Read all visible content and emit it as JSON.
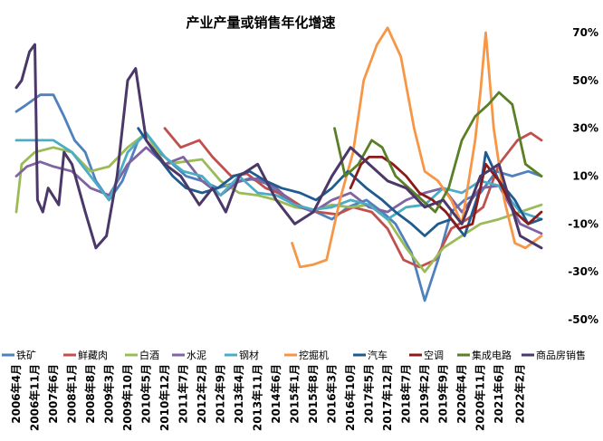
{
  "chart_data": {
    "type": "line",
    "title": "产业产量或销售年化增速",
    "ylim": [
      -50,
      70
    ],
    "y_ticks": [
      "70%",
      "50%",
      "30%",
      "10%",
      "-10%",
      "-30%",
      "-50%"
    ],
    "y_tick_values": [
      70,
      50,
      30,
      10,
      -10,
      -30,
      -50
    ],
    "x_start": "2006-04",
    "x_end": "2022-10",
    "x_ticks": [
      "2006年4月",
      "2006年11月",
      "2007年6月",
      "2008年1月",
      "2008年8月",
      "2009年3月",
      "2009年10月",
      "2010年5月",
      "2010年12月",
      "2011年7月",
      "2012年2月",
      "2012年9月",
      "2013年4月",
      "2013年11月",
      "2014年6月",
      "2015年1月",
      "2015年8月",
      "2016年3月",
      "2016年10月",
      "2017年5月",
      "2017年12月",
      "2018年7月",
      "2019年2月",
      "2019年9月",
      "2020年4月",
      "2020年11月",
      "2021年6月",
      "2022年2月"
    ],
    "legend_position": "bottom",
    "grid": false,
    "series": [
      {
        "name": "铁矿",
        "color": "#4f81bd",
        "width": 2.8,
        "points": [
          [
            "2006-04",
            37
          ],
          [
            "2006-08",
            40
          ],
          [
            "2007-01",
            44
          ],
          [
            "2007-06",
            44
          ],
          [
            "2007-10",
            35
          ],
          [
            "2008-02",
            25
          ],
          [
            "2008-06",
            20
          ],
          [
            "2008-10",
            8
          ],
          [
            "2009-03",
            0
          ],
          [
            "2009-08",
            8
          ],
          [
            "2010-02",
            25
          ],
          [
            "2010-05",
            28
          ],
          [
            "2010-10",
            20
          ],
          [
            "2011-03",
            15
          ],
          [
            "2011-08",
            10
          ],
          [
            "2012-02",
            8
          ],
          [
            "2012-08",
            5
          ],
          [
            "2013-02",
            7
          ],
          [
            "2013-08",
            9
          ],
          [
            "2014-02",
            7
          ],
          [
            "2014-08",
            2
          ],
          [
            "2015-03",
            -3
          ],
          [
            "2015-09",
            -5
          ],
          [
            "2016-03",
            -8
          ],
          [
            "2016-09",
            -3
          ],
          [
            "2017-04",
            0
          ],
          [
            "2017-10",
            -5
          ],
          [
            "2018-03",
            -10
          ],
          [
            "2018-09",
            -22
          ],
          [
            "2019-02",
            -42
          ],
          [
            "2019-07",
            -25
          ],
          [
            "2019-12",
            -5
          ],
          [
            "2020-05",
            0
          ],
          [
            "2020-11",
            3
          ],
          [
            "2021-05",
            12
          ],
          [
            "2021-11",
            10
          ],
          [
            "2022-05",
            12
          ],
          [
            "2022-10",
            10
          ]
        ]
      },
      {
        "name": "鲜藏肉",
        "color": "#c0504d",
        "width": 2.8,
        "points": [
          [
            "2010-12",
            30
          ],
          [
            "2011-06",
            22
          ],
          [
            "2012-01",
            25
          ],
          [
            "2012-06",
            18
          ],
          [
            "2013-01",
            10
          ],
          [
            "2013-07",
            11
          ],
          [
            "2014-02",
            5
          ],
          [
            "2014-09",
            2
          ],
          [
            "2015-04",
            -3
          ],
          [
            "2015-10",
            -5
          ],
          [
            "2016-05",
            -6
          ],
          [
            "2016-11",
            -3
          ],
          [
            "2017-06",
            -5
          ],
          [
            "2017-12",
            -12
          ],
          [
            "2018-06",
            -25
          ],
          [
            "2018-12",
            -28
          ],
          [
            "2019-06",
            -25
          ],
          [
            "2019-12",
            -12
          ],
          [
            "2020-06",
            -8
          ],
          [
            "2020-12",
            -3
          ],
          [
            "2021-06",
            15
          ],
          [
            "2022-01",
            25
          ],
          [
            "2022-06",
            28
          ],
          [
            "2022-10",
            25
          ]
        ]
      },
      {
        "name": "白酒",
        "color": "#9bbb59",
        "width": 2.8,
        "points": [
          [
            "2006-04",
            -5
          ],
          [
            "2006-06",
            15
          ],
          [
            "2006-11",
            20
          ],
          [
            "2007-06",
            22
          ],
          [
            "2008-01",
            20
          ],
          [
            "2008-08",
            12
          ],
          [
            "2009-03",
            14
          ],
          [
            "2009-10",
            22
          ],
          [
            "2010-05",
            28
          ],
          [
            "2010-12",
            15
          ],
          [
            "2011-07",
            16
          ],
          [
            "2012-02",
            17
          ],
          [
            "2012-09",
            8
          ],
          [
            "2013-04",
            3
          ],
          [
            "2013-11",
            2
          ],
          [
            "2014-06",
            0
          ],
          [
            "2015-01",
            -3
          ],
          [
            "2015-08",
            -4
          ],
          [
            "2016-03",
            -2
          ],
          [
            "2016-10",
            -3
          ],
          [
            "2017-05",
            -2
          ],
          [
            "2017-12",
            -8
          ],
          [
            "2018-07",
            -20
          ],
          [
            "2019-02",
            -30
          ],
          [
            "2019-09",
            -20
          ],
          [
            "2020-04",
            -15
          ],
          [
            "2020-11",
            -10
          ],
          [
            "2021-06",
            -8
          ],
          [
            "2022-02",
            -5
          ],
          [
            "2022-10",
            -2
          ]
        ]
      },
      {
        "name": "水泥",
        "color": "#8064a2",
        "width": 2.8,
        "points": [
          [
            "2006-04",
            10
          ],
          [
            "2006-08",
            14
          ],
          [
            "2007-01",
            16
          ],
          [
            "2007-06",
            14
          ],
          [
            "2008-01",
            12
          ],
          [
            "2008-08",
            5
          ],
          [
            "2009-03",
            2
          ],
          [
            "2009-10",
            15
          ],
          [
            "2010-05",
            22
          ],
          [
            "2010-12",
            15
          ],
          [
            "2011-07",
            18
          ],
          [
            "2012-02",
            8
          ],
          [
            "2012-09",
            2
          ],
          [
            "2013-04",
            8
          ],
          [
            "2013-11",
            9
          ],
          [
            "2014-06",
            5
          ],
          [
            "2015-01",
            -2
          ],
          [
            "2015-08",
            -5
          ],
          [
            "2016-03",
            0
          ],
          [
            "2016-10",
            3
          ],
          [
            "2017-05",
            -3
          ],
          [
            "2017-12",
            -5
          ],
          [
            "2018-07",
            0
          ],
          [
            "2019-02",
            3
          ],
          [
            "2019-09",
            5
          ],
          [
            "2020-04",
            -5
          ],
          [
            "2020-11",
            5
          ],
          [
            "2021-06",
            6
          ],
          [
            "2022-02",
            -10
          ],
          [
            "2022-10",
            -14
          ]
        ]
      },
      {
        "name": "钢材",
        "color": "#4bacc6",
        "width": 2.8,
        "points": [
          [
            "2006-04",
            25
          ],
          [
            "2007-01",
            25
          ],
          [
            "2007-06",
            25
          ],
          [
            "2008-01",
            20
          ],
          [
            "2008-08",
            10
          ],
          [
            "2009-03",
            0
          ],
          [
            "2009-10",
            20
          ],
          [
            "2010-05",
            28
          ],
          [
            "2010-12",
            18
          ],
          [
            "2011-07",
            12
          ],
          [
            "2012-02",
            10
          ],
          [
            "2012-09",
            2
          ],
          [
            "2013-04",
            10
          ],
          [
            "2013-11",
            3
          ],
          [
            "2014-06",
            2
          ],
          [
            "2015-01",
            -2
          ],
          [
            "2015-08",
            -4
          ],
          [
            "2016-03",
            -3
          ],
          [
            "2016-10",
            0
          ],
          [
            "2017-05",
            -2
          ],
          [
            "2017-12",
            -8
          ],
          [
            "2018-07",
            -3
          ],
          [
            "2019-02",
            -2
          ],
          [
            "2019-09",
            5
          ],
          [
            "2020-04",
            3
          ],
          [
            "2020-11",
            8
          ],
          [
            "2021-06",
            6
          ],
          [
            "2022-02",
            -5
          ],
          [
            "2022-10",
            -8
          ]
        ]
      },
      {
        "name": "挖掘机",
        "color": "#f79646",
        "width": 2.8,
        "points": [
          [
            "2014-12",
            -18
          ],
          [
            "2015-03",
            -28
          ],
          [
            "2015-08",
            -27
          ],
          [
            "2016-01",
            -25
          ],
          [
            "2016-06",
            0
          ],
          [
            "2016-11",
            20
          ],
          [
            "2017-03",
            50
          ],
          [
            "2017-08",
            65
          ],
          [
            "2017-12",
            72
          ],
          [
            "2018-05",
            60
          ],
          [
            "2018-10",
            30
          ],
          [
            "2019-02",
            12
          ],
          [
            "2019-07",
            8
          ],
          [
            "2019-12",
            0
          ],
          [
            "2020-04",
            -10
          ],
          [
            "2020-09",
            25
          ],
          [
            "2020-11",
            45
          ],
          [
            "2021-01",
            70
          ],
          [
            "2021-04",
            30
          ],
          [
            "2021-08",
            0
          ],
          [
            "2021-12",
            -18
          ],
          [
            "2022-04",
            -20
          ],
          [
            "2022-10",
            -15
          ]
        ]
      },
      {
        "name": "汽车",
        "color": "#1f5b8f",
        "width": 2.8,
        "points": [
          [
            "2010-02",
            30
          ],
          [
            "2010-08",
            20
          ],
          [
            "2011-03",
            10
          ],
          [
            "2011-08",
            5
          ],
          [
            "2012-02",
            3
          ],
          [
            "2012-08",
            5
          ],
          [
            "2013-02",
            10
          ],
          [
            "2013-08",
            12
          ],
          [
            "2014-02",
            8
          ],
          [
            "2014-08",
            5
          ],
          [
            "2015-03",
            3
          ],
          [
            "2015-09",
            0
          ],
          [
            "2016-03",
            5
          ],
          [
            "2016-09",
            12
          ],
          [
            "2017-04",
            5
          ],
          [
            "2017-10",
            0
          ],
          [
            "2018-03",
            -5
          ],
          [
            "2018-09",
            -10
          ],
          [
            "2019-02",
            -15
          ],
          [
            "2019-07",
            -10
          ],
          [
            "2019-12",
            -8
          ],
          [
            "2020-05",
            -15
          ],
          [
            "2020-11",
            5
          ],
          [
            "2021-01",
            20
          ],
          [
            "2021-06",
            8
          ],
          [
            "2021-12",
            0
          ],
          [
            "2022-05",
            -10
          ],
          [
            "2022-10",
            -8
          ]
        ]
      },
      {
        "name": "空调",
        "color": "#8b1a1a",
        "width": 2.8,
        "points": [
          [
            "2016-10",
            5
          ],
          [
            "2017-02",
            15
          ],
          [
            "2017-05",
            18
          ],
          [
            "2017-10",
            18
          ],
          [
            "2018-02",
            15
          ],
          [
            "2018-07",
            10
          ],
          [
            "2018-12",
            3
          ],
          [
            "2019-05",
            0
          ],
          [
            "2019-10",
            -5
          ],
          [
            "2020-03",
            -12
          ],
          [
            "2020-08",
            -10
          ],
          [
            "2021-01",
            15
          ],
          [
            "2021-06",
            8
          ],
          [
            "2021-12",
            -5
          ],
          [
            "2022-05",
            -10
          ],
          [
            "2022-10",
            -5
          ]
        ]
      },
      {
        "name": "集成电路",
        "color": "#5b7f26",
        "width": 2.8,
        "points": [
          [
            "2016-04",
            30
          ],
          [
            "2016-08",
            10
          ],
          [
            "2017-01",
            15
          ],
          [
            "2017-06",
            25
          ],
          [
            "2017-10",
            22
          ],
          [
            "2018-03",
            10
          ],
          [
            "2018-08",
            5
          ],
          [
            "2019-01",
            0
          ],
          [
            "2019-06",
            -5
          ],
          [
            "2019-11",
            5
          ],
          [
            "2020-04",
            25
          ],
          [
            "2020-09",
            35
          ],
          [
            "2021-02",
            40
          ],
          [
            "2021-06",
            45
          ],
          [
            "2021-11",
            40
          ],
          [
            "2022-04",
            15
          ],
          [
            "2022-10",
            10
          ]
        ]
      },
      {
        "name": "商品房销售",
        "color": "#4b3868",
        "width": 3,
        "points": [
          [
            "2006-04",
            47
          ],
          [
            "2006-06",
            50
          ],
          [
            "2006-09",
            62
          ],
          [
            "2006-11",
            65
          ],
          [
            "2006-12",
            0
          ],
          [
            "2007-02",
            -5
          ],
          [
            "2007-04",
            5
          ],
          [
            "2007-08",
            -2
          ],
          [
            "2007-10",
            20
          ],
          [
            "2008-01",
            15
          ],
          [
            "2008-06",
            -5
          ],
          [
            "2008-10",
            -20
          ],
          [
            "2009-02",
            -15
          ],
          [
            "2009-06",
            10
          ],
          [
            "2009-10",
            50
          ],
          [
            "2010-01",
            55
          ],
          [
            "2010-05",
            25
          ],
          [
            "2010-12",
            15
          ],
          [
            "2011-06",
            10
          ],
          [
            "2012-01",
            -2
          ],
          [
            "2012-06",
            5
          ],
          [
            "2012-11",
            -5
          ],
          [
            "2013-04",
            10
          ],
          [
            "2013-11",
            15
          ],
          [
            "2014-06",
            0
          ],
          [
            "2015-01",
            -10
          ],
          [
            "2015-08",
            -5
          ],
          [
            "2016-03",
            10
          ],
          [
            "2016-10",
            22
          ],
          [
            "2017-05",
            15
          ],
          [
            "2017-12",
            8
          ],
          [
            "2018-07",
            5
          ],
          [
            "2019-02",
            -3
          ],
          [
            "2019-09",
            0
          ],
          [
            "2020-04",
            -10
          ],
          [
            "2020-11",
            10
          ],
          [
            "2021-06",
            15
          ],
          [
            "2022-02",
            -15
          ],
          [
            "2022-10",
            -20
          ]
        ]
      }
    ]
  }
}
